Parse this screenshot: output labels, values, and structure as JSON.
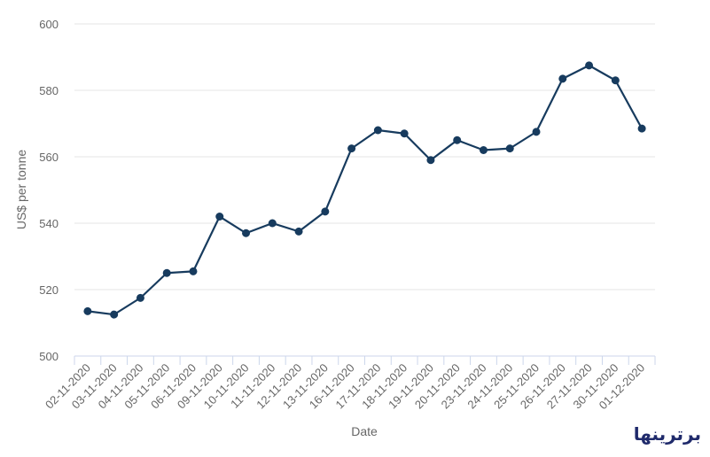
{
  "chart_data": {
    "type": "line",
    "xlabel": "Date",
    "ylabel": "US$ per tonne",
    "ylim": [
      500,
      600
    ],
    "yticks": [
      500,
      520,
      540,
      560,
      580,
      600
    ],
    "grid": true,
    "categories": [
      "02-11-2020",
      "03-11-2020",
      "04-11-2020",
      "05-11-2020",
      "06-11-2020",
      "09-11-2020",
      "10-11-2020",
      "11-11-2020",
      "12-11-2020",
      "13-11-2020",
      "16-11-2020",
      "17-11-2020",
      "18-11-2020",
      "19-11-2020",
      "20-11-2020",
      "23-11-2020",
      "24-11-2020",
      "25-11-2020",
      "26-11-2020",
      "27-11-2020",
      "30-11-2020",
      "01-12-2020"
    ],
    "series": [
      {
        "values": [
          513.5,
          512.5,
          517.5,
          525,
          525.5,
          542,
          537,
          540,
          537.5,
          543.5,
          562.5,
          568,
          567,
          559,
          565,
          562,
          562.5,
          567.5,
          583.5,
          587.5,
          583,
          568.5
        ]
      }
    ],
    "color": "#173b5e"
  },
  "watermark": "برترینها"
}
